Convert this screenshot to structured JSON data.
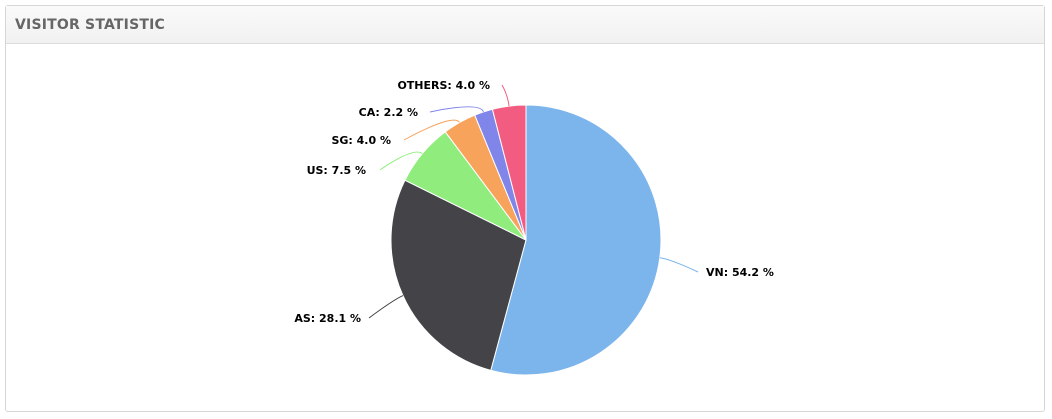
{
  "header": {
    "title": "VISITOR STATISTIC"
  },
  "chart_data": {
    "type": "pie",
    "title": "",
    "slices": [
      {
        "name": "VN",
        "value": 54.2,
        "color": "#7cb5ec"
      },
      {
        "name": "AS",
        "value": 28.1,
        "color": "#434348"
      },
      {
        "name": "US",
        "value": 7.5,
        "color": "#90ed7d"
      },
      {
        "name": "SG",
        "value": 4.0,
        "color": "#f7a35c"
      },
      {
        "name": "CA",
        "value": 2.2,
        "color": "#8085e9"
      },
      {
        "name": "OTHERS",
        "value": 4.0,
        "color": "#f15c80"
      }
    ],
    "labels": [
      {
        "slice": "VN",
        "text": "VN: 54.2 %"
      },
      {
        "slice": "AS",
        "text": "AS: 28.1 %"
      },
      {
        "slice": "US",
        "text": "US: 7.5 %"
      },
      {
        "slice": "SG",
        "text": "SG: 4.0 %"
      },
      {
        "slice": "CA",
        "text": "CA: 2.2 %"
      },
      {
        "slice": "OTHERS",
        "text": "OTHERS: 4.0 %"
      }
    ],
    "legend": "none"
  }
}
